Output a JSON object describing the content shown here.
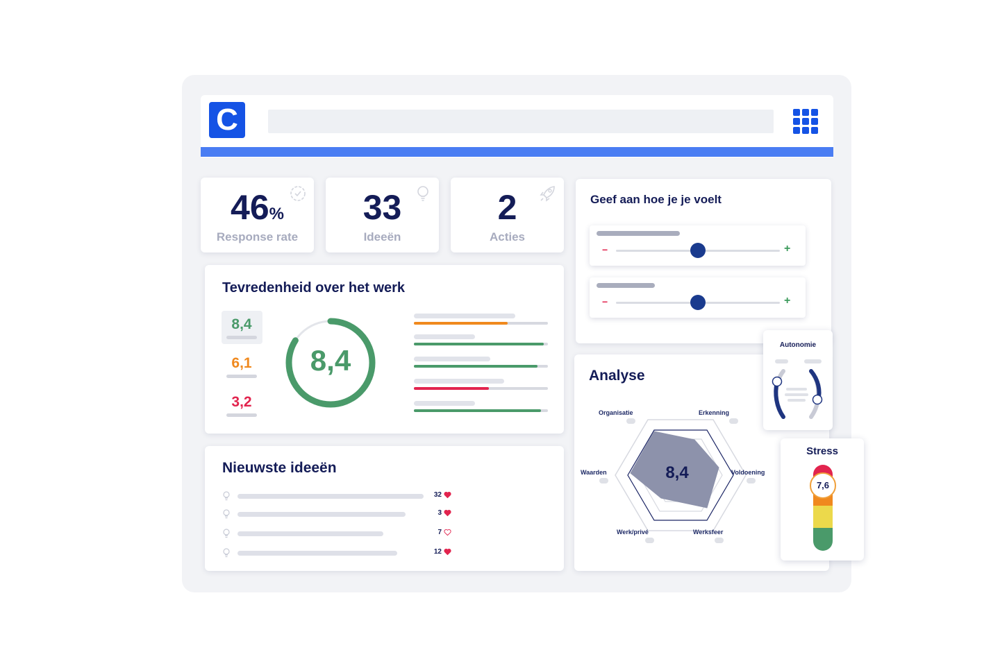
{
  "header": {
    "logo_letter": "C"
  },
  "stats": [
    {
      "value": "46",
      "unit": "%",
      "label": "Response rate",
      "icon": "check-circle-icon"
    },
    {
      "value": "33",
      "unit": "",
      "label": "Ideeën",
      "icon": "lightbulb-icon"
    },
    {
      "value": "2",
      "unit": "",
      "label": "Acties",
      "icon": "rocket-icon"
    }
  ],
  "satisfaction": {
    "title": "Tevredenheid over het werk",
    "scores": [
      {
        "value": "8,4",
        "color": "#4a9a6a"
      },
      {
        "value": "6,1",
        "color": "#f0891e"
      },
      {
        "value": "3,2",
        "color": "#e2244e"
      }
    ],
    "ring": {
      "value": "8,4",
      "fraction": 0.84,
      "color": "#4a9a6a"
    },
    "bars": [
      {
        "fraction": 0.7,
        "color": "#f0891e"
      },
      {
        "fraction": 0.97,
        "color": "#4a9a6a"
      },
      {
        "fraction": 0.92,
        "color": "#4a9a6a"
      },
      {
        "fraction": 0.56,
        "color": "#e2244e"
      },
      {
        "fraction": 0.95,
        "color": "#4a9a6a"
      }
    ]
  },
  "ideas": {
    "title": "Nieuwste ideeën",
    "items": [
      {
        "count": "32",
        "liked": true
      },
      {
        "count": "3",
        "liked": true
      },
      {
        "count": "7",
        "liked": false
      },
      {
        "count": "12",
        "liked": true
      }
    ]
  },
  "feelings": {
    "title": "Geef aan hoe je je voelt",
    "minus": "−",
    "plus": "+",
    "sliders": [
      {
        "fraction": 0.5
      },
      {
        "fraction": 0.5
      }
    ]
  },
  "analyse": {
    "title": "Analyse",
    "score": "8,4",
    "axes": [
      "Organisatie",
      "Erkenning",
      "Voldoening",
      "Werksfeer",
      "Werk/privé",
      "Waarden"
    ]
  },
  "autonomie": {
    "title": "Autonomie"
  },
  "stress": {
    "title": "Stress",
    "value": "7,6",
    "levels": [
      "#e2244e",
      "#f0891e",
      "#ecd94b",
      "#4a9a6a"
    ]
  }
}
